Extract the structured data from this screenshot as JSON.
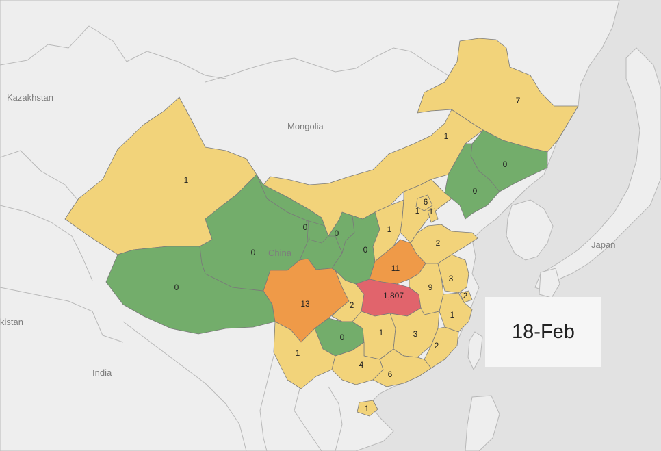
{
  "colors": {
    "zero": "#73ad6b",
    "low": "#f2d37a",
    "medium": "#ef9a48",
    "high": "#e1646c",
    "land": "#eeeeee",
    "water": "#e2e2e2"
  },
  "country_labels": [
    "Kazakhstan",
    "Mongolia",
    "China",
    "Japan",
    "kistan",
    "India"
  ],
  "date_label": "18-Feb",
  "regions": [
    {
      "name": "Xinjiang",
      "value": "1",
      "tier": "low"
    },
    {
      "name": "Tibet",
      "value": "0",
      "tier": "zero"
    },
    {
      "name": "Qinghai",
      "value": "0",
      "tier": "zero"
    },
    {
      "name": "Gansu",
      "value": "0",
      "tier": "zero"
    },
    {
      "name": "Inner Mongolia",
      "value": "1",
      "tier": "low"
    },
    {
      "name": "Heilongjiang",
      "value": "7",
      "tier": "low"
    },
    {
      "name": "Jilin",
      "value": "0",
      "tier": "zero"
    },
    {
      "name": "Liaoning",
      "value": "0",
      "tier": "zero"
    },
    {
      "name": "Ningxia",
      "value": "0",
      "tier": "zero"
    },
    {
      "name": "Shaanxi",
      "value": "0",
      "tier": "zero"
    },
    {
      "name": "Shanxi",
      "value": "1",
      "tier": "low"
    },
    {
      "name": "Hebei",
      "value": "1",
      "tier": "low"
    },
    {
      "name": "Beijing",
      "value": "6",
      "tier": "low"
    },
    {
      "name": "Tianjin",
      "value": "1",
      "tier": "low"
    },
    {
      "name": "Shandong",
      "value": "2",
      "tier": "low"
    },
    {
      "name": "Henan",
      "value": "11",
      "tier": "medium"
    },
    {
      "name": "Sichuan",
      "value": "13",
      "tier": "medium"
    },
    {
      "name": "Chongqing",
      "value": "2",
      "tier": "low"
    },
    {
      "name": "Hubei",
      "value": "1,807",
      "tier": "high"
    },
    {
      "name": "Anhui",
      "value": "9",
      "tier": "low"
    },
    {
      "name": "Jiangsu",
      "value": "3",
      "tier": "low"
    },
    {
      "name": "Shanghai",
      "value": "2",
      "tier": "low"
    },
    {
      "name": "Zhejiang",
      "value": "1",
      "tier": "low"
    },
    {
      "name": "Guizhou",
      "value": "0",
      "tier": "zero"
    },
    {
      "name": "Hunan",
      "value": "1",
      "tier": "low"
    },
    {
      "name": "Jiangxi",
      "value": "3",
      "tier": "low"
    },
    {
      "name": "Fujian",
      "value": "2",
      "tier": "low"
    },
    {
      "name": "Yunnan",
      "value": "1",
      "tier": "low"
    },
    {
      "name": "Guangxi",
      "value": "4",
      "tier": "low"
    },
    {
      "name": "Guangdong",
      "value": "6",
      "tier": "low"
    },
    {
      "name": "Hainan",
      "value": "1",
      "tier": "low"
    }
  ]
}
